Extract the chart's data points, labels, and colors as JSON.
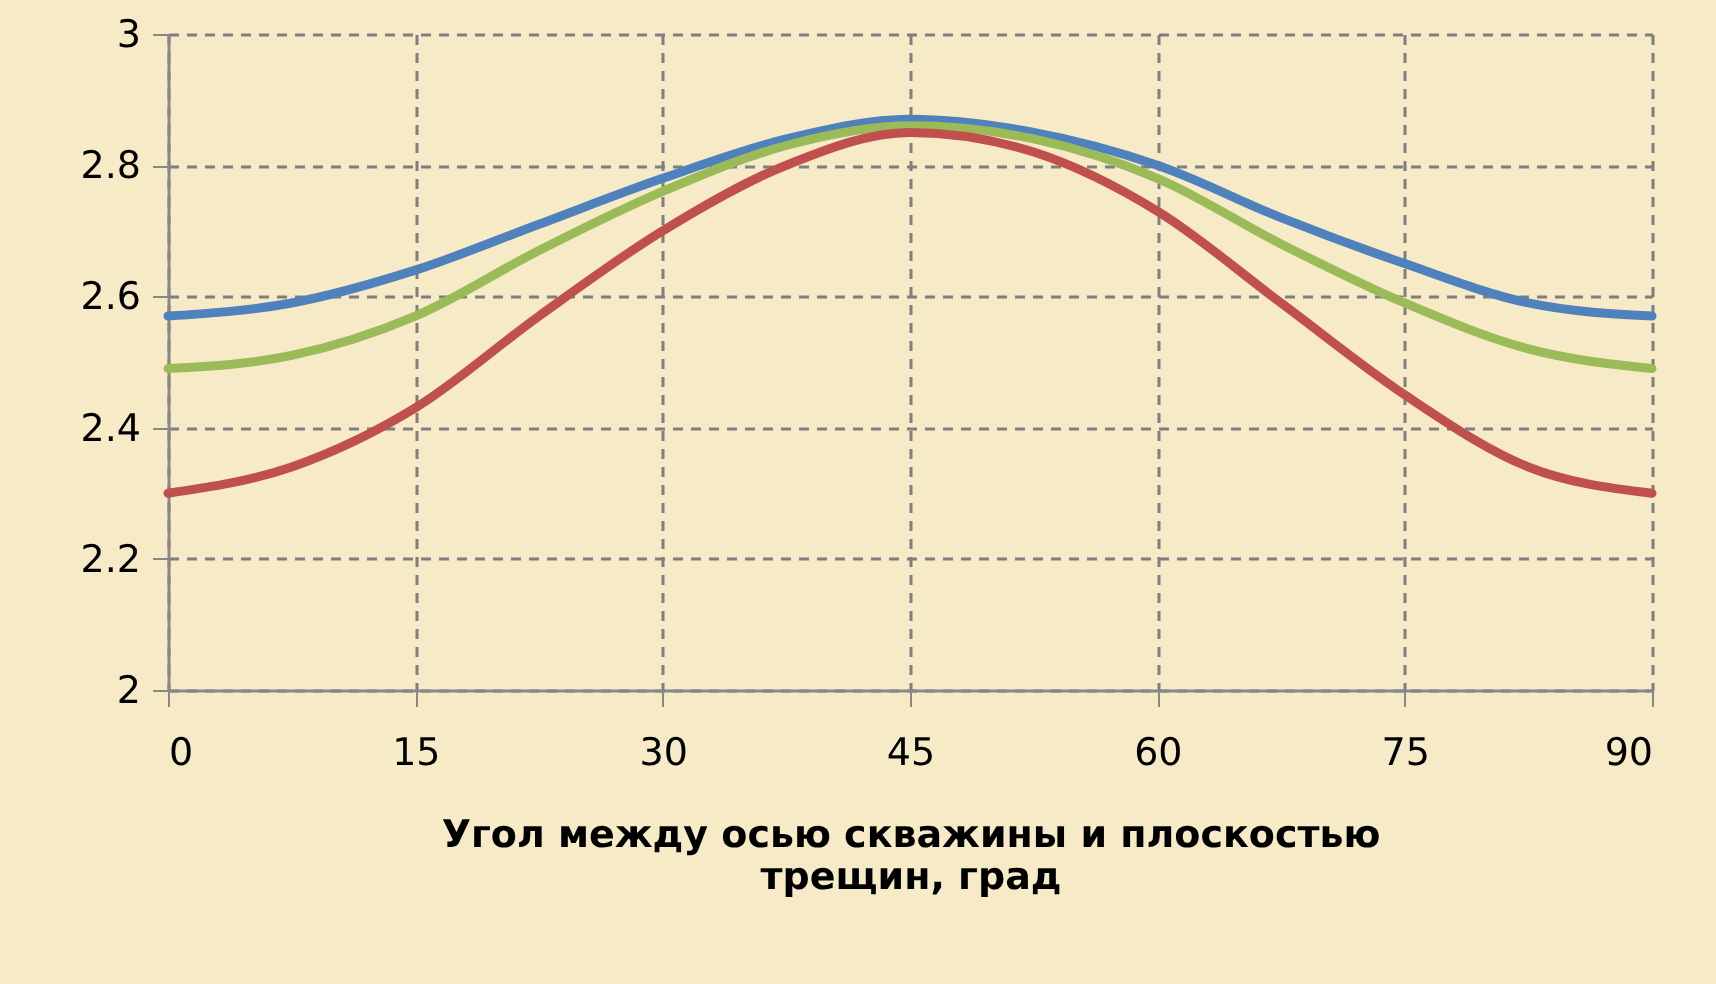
{
  "chart_data": {
    "type": "line",
    "xlabel": "Угол между осью скважины и плоскостью трещин, град",
    "x": [
      0,
      7.5,
      15,
      22.5,
      30,
      37.5,
      45,
      52.5,
      60,
      67.5,
      75,
      82.5,
      90
    ],
    "series": [
      {
        "color": "#4f81bd",
        "values": [
          2.57,
          2.59,
          2.64,
          2.71,
          2.78,
          2.84,
          2.87,
          2.85,
          2.8,
          2.72,
          2.65,
          2.59,
          2.57
        ]
      },
      {
        "color": "#9bbb59",
        "values": [
          2.49,
          2.51,
          2.57,
          2.67,
          2.76,
          2.83,
          2.86,
          2.84,
          2.78,
          2.68,
          2.59,
          2.52,
          2.49
        ]
      },
      {
        "color": "#c0504d",
        "values": [
          2.3,
          2.34,
          2.43,
          2.57,
          2.7,
          2.8,
          2.85,
          2.82,
          2.73,
          2.59,
          2.45,
          2.34,
          2.3
        ]
      }
    ],
    "xlim": [
      0,
      90
    ],
    "xticks": [
      0,
      15,
      30,
      45,
      60,
      75,
      90
    ],
    "ylim": [
      2,
      3
    ],
    "yticks": [
      2,
      2.2,
      2.4,
      2.6,
      2.8,
      3
    ],
    "grid": true,
    "line_style": "solid"
  }
}
